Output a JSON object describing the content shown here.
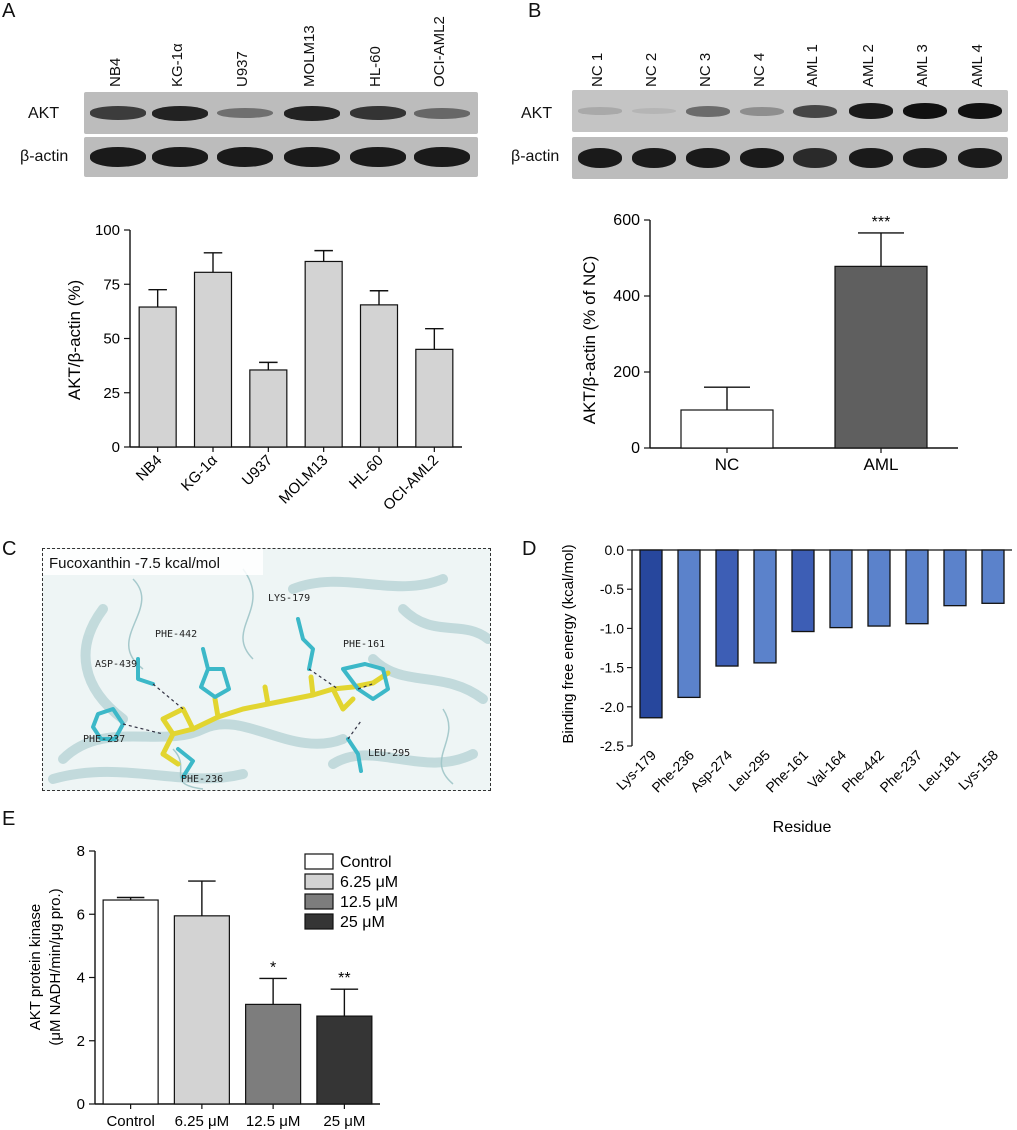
{
  "panels": {
    "a": "A",
    "b": "B",
    "c": "C",
    "d": "D",
    "e": "E"
  },
  "blot_a": {
    "lanes": [
      "NB4",
      "KG-1α",
      "U937",
      "MOLM13",
      "HL-60",
      "OCI-AML2"
    ],
    "rows": [
      "AKT",
      "β-actin"
    ],
    "akt_intensity": [
      0.75,
      0.9,
      0.45,
      0.9,
      0.8,
      0.5
    ],
    "actin_intensity": [
      0.95,
      0.95,
      0.95,
      0.95,
      0.95,
      0.95
    ]
  },
  "blot_b": {
    "lanes": [
      "NC 1",
      "NC 2",
      "NC 3",
      "NC 4",
      "AML 1",
      "AML 2",
      "AML 3",
      "AML 4"
    ],
    "rows": [
      "AKT",
      "β-actin"
    ],
    "akt_intensity": [
      0.15,
      0.03,
      0.5,
      0.3,
      0.7,
      0.95,
      1.0,
      1.0
    ],
    "actin_intensity": [
      0.95,
      0.95,
      0.95,
      0.95,
      0.85,
      0.95,
      0.95,
      0.95
    ]
  },
  "docking": {
    "title": "Fucoxanthin  -7.5 kcal/mol",
    "residues": [
      "LYS-179",
      "PHE-442",
      "PHE-161",
      "ASP-439",
      "PHE-237",
      "PHE-236",
      "LEU-295"
    ]
  },
  "colors": {
    "bar_gray": "#d3d3d3",
    "aml_dark": "#5f5f5f",
    "e_mid": "#7d7d7d",
    "e_dark": "#353535",
    "d_dark": "#27479d",
    "d_mid": "#3d5eb5",
    "d_light": "#5b82cb",
    "ligand": "#e8e03a",
    "residue": "#3cb8c8"
  },
  "chart_data": [
    {
      "id": "A",
      "type": "bar",
      "categories": [
        "NB4",
        "KG-1α",
        "U937",
        "MOLM13",
        "HL-60",
        "OCI-AML2"
      ],
      "values": [
        64.5,
        80.5,
        35.5,
        85.5,
        65.5,
        45
      ],
      "errors": [
        8,
        9,
        3.5,
        5,
        6.5,
        9.5
      ],
      "ylabel": "AKT/β-actin (%)",
      "ylim": [
        0,
        100
      ],
      "yticks": [
        0,
        25,
        50,
        75,
        100
      ]
    },
    {
      "id": "B",
      "type": "bar",
      "categories": [
        "NC",
        "AML"
      ],
      "values": [
        100,
        478
      ],
      "errors": [
        60,
        88
      ],
      "significance": [
        "",
        "***"
      ],
      "ylabel": "AKT/β-actin (% of NC)",
      "ylim": [
        0,
        600
      ],
      "yticks": [
        0,
        200,
        400,
        600
      ]
    },
    {
      "id": "D",
      "type": "bar",
      "categories": [
        "Lys-179",
        "Phe-236",
        "Asp-274",
        "Leu-295",
        "Phe-161",
        "Val-164",
        "Phe-442",
        "Phe-237",
        "Leu-181",
        "Lys-158"
      ],
      "values": [
        -2.14,
        -1.88,
        -1.48,
        -1.44,
        -1.04,
        -0.99,
        -0.97,
        -0.94,
        -0.71,
        -0.68
      ],
      "xlabel": "Residue",
      "ylabel": "Binding free energy (kcal/mol)",
      "ylim": [
        -2.5,
        0
      ],
      "yticks": [
        "0.0",
        "-0.5",
        "-1.0",
        "-1.5",
        "-2.0",
        "-2.5"
      ]
    },
    {
      "id": "E",
      "type": "bar",
      "categories": [
        "Control",
        "6.25 μM",
        "12.5 μM",
        "25 μM"
      ],
      "values": [
        6.45,
        5.95,
        3.15,
        2.78
      ],
      "errors": [
        0.08,
        1.1,
        0.82,
        0.85
      ],
      "significance": [
        "",
        "",
        "*",
        "**"
      ],
      "legend": [
        "Control",
        "6.25 μM",
        "12.5 μM",
        "25 μM"
      ],
      "ylabel": "AKT protein  kinase",
      "ylabel2": "(μM NADH/min/μg pro.)",
      "ylim": [
        0,
        8
      ],
      "yticks": [
        0,
        2,
        4,
        6,
        8
      ]
    }
  ]
}
